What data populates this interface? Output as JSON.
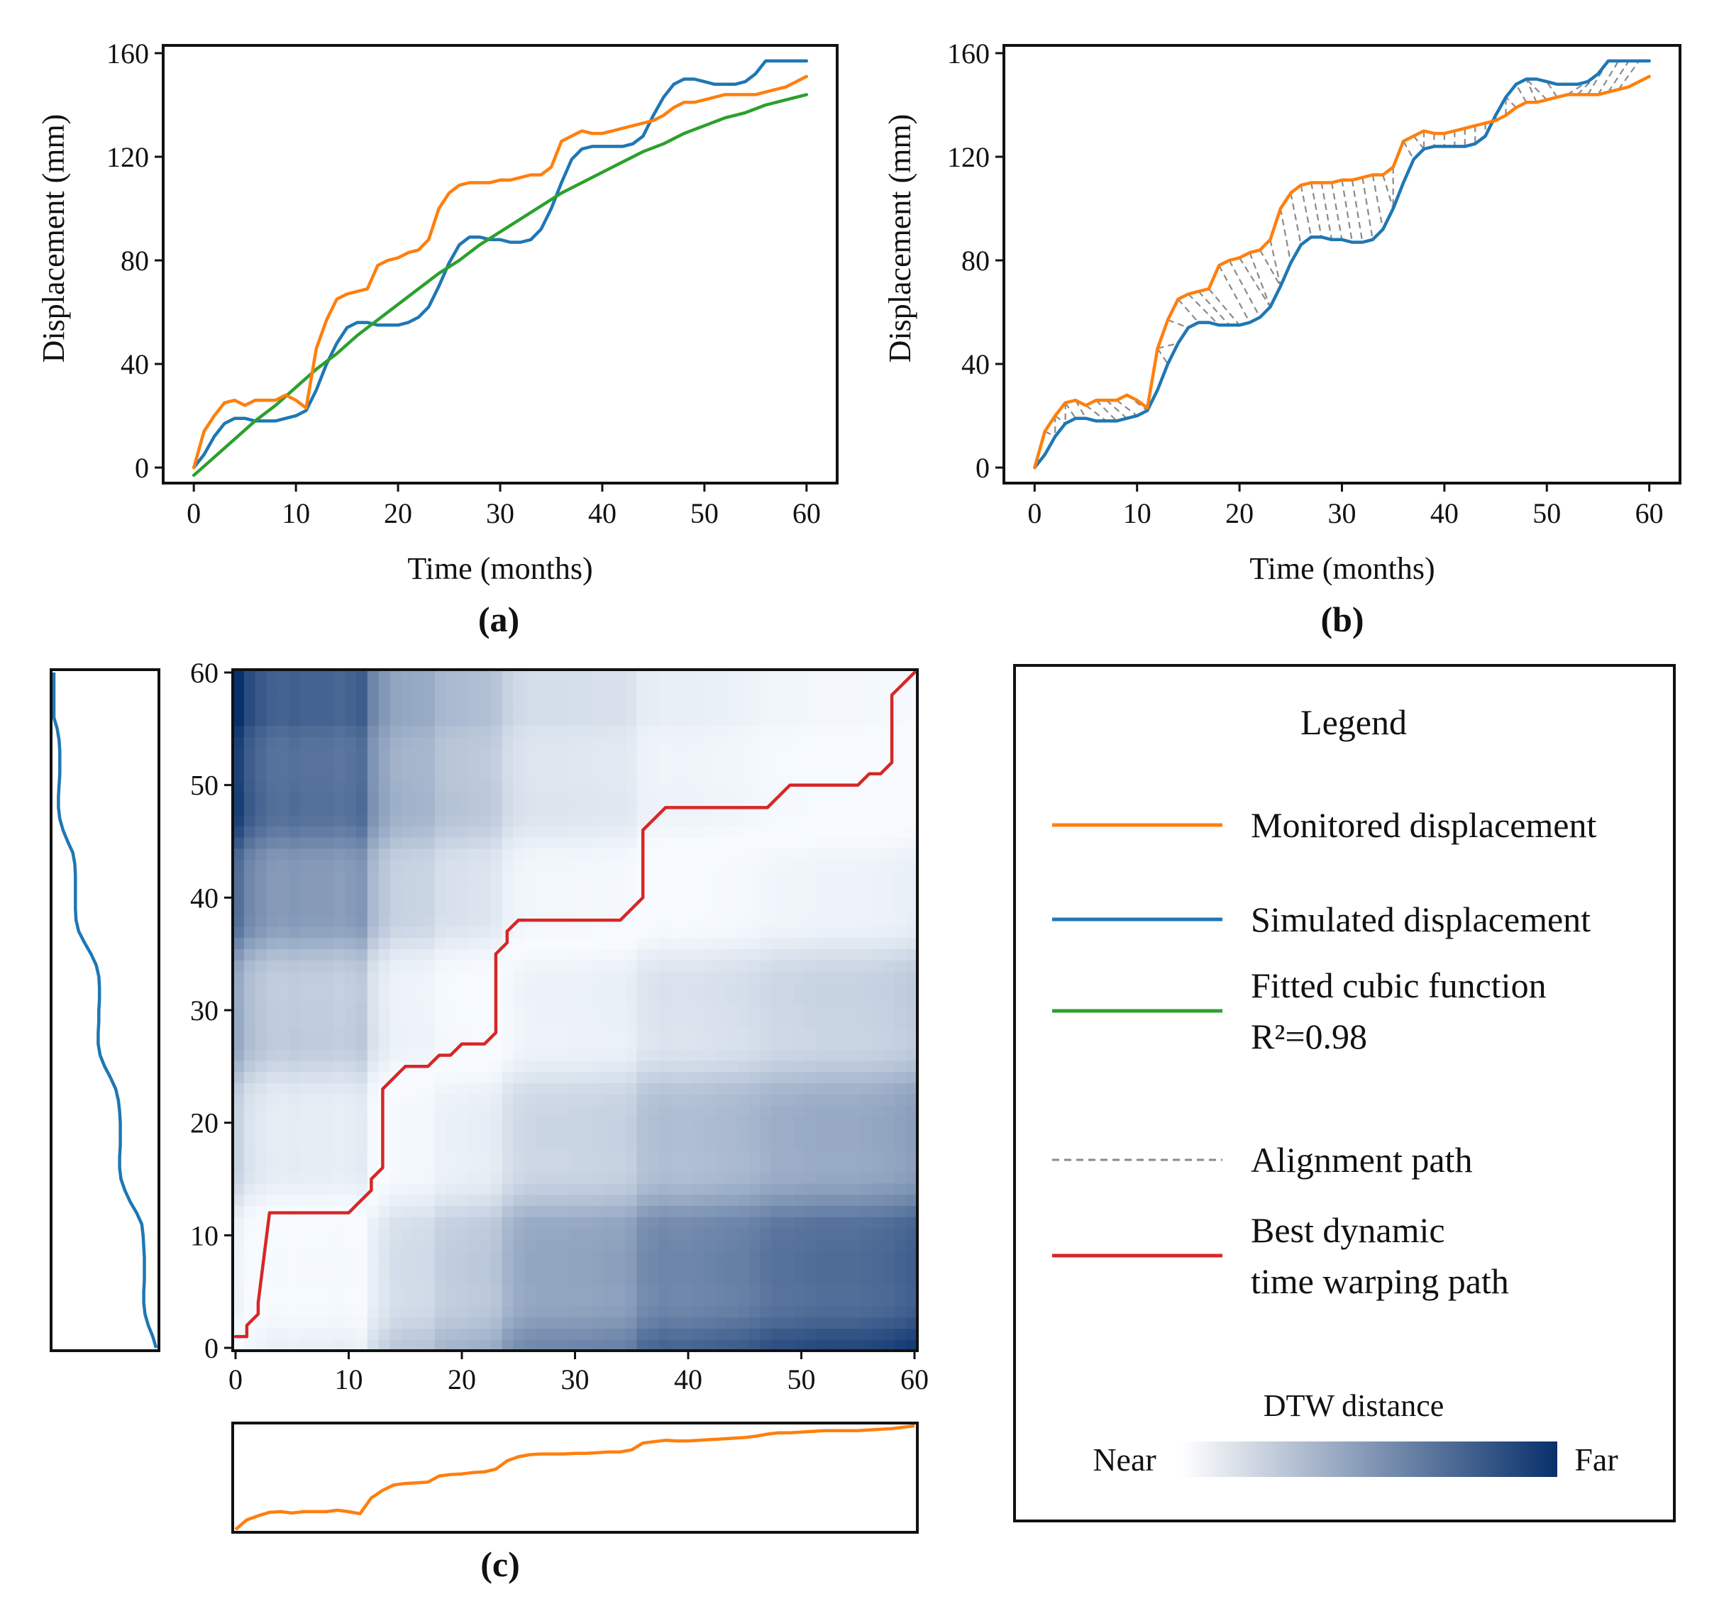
{
  "colors": {
    "monitored": "#ff7f0e",
    "simulated": "#1f77b4",
    "fitted": "#2ca02c",
    "alignment": "#8a8a8a",
    "dtw_path": "#d62728",
    "heat_near": "#f7fbff",
    "heat_far": "#08306b"
  },
  "panels": {
    "a": {
      "label": "(a)"
    },
    "b": {
      "label": "(b)"
    },
    "c": {
      "label": "(c)"
    }
  },
  "legend": {
    "title": "Legend",
    "items": [
      {
        "key": "monitored",
        "style": "solid",
        "lines": [
          "Monitored displacement"
        ]
      },
      {
        "key": "simulated",
        "style": "solid",
        "lines": [
          "Simulated displacement"
        ]
      },
      {
        "key": "fitted",
        "style": "solid",
        "lines": [
          "Fitted cubic function",
          "R²=0.98"
        ]
      },
      {
        "key": "alignment",
        "style": "dashed",
        "lines": [
          "Alignment path"
        ]
      },
      {
        "key": "dtw_path",
        "style": "solid",
        "lines": [
          "Best dynamic",
          "time warping path"
        ]
      }
    ],
    "colorbar": {
      "title": "DTW distance",
      "near": "Near",
      "far": "Far"
    }
  },
  "chart_data": [
    {
      "id": "a",
      "type": "line",
      "xlabel": "Time (months)",
      "ylabel": "Displacement (mm)",
      "xlim": [
        -3,
        63
      ],
      "ylim": [
        -6,
        163
      ],
      "xticks": [
        0,
        10,
        20,
        30,
        40,
        50,
        60
      ],
      "yticks": [
        0,
        40,
        80,
        120,
        160
      ],
      "series": [
        {
          "name": "Monitored displacement",
          "color_key": "monitored",
          "x": [
            0,
            1,
            2,
            3,
            4,
            5,
            6,
            7,
            8,
            9,
            10,
            11,
            12,
            13,
            14,
            15,
            16,
            17,
            18,
            19,
            20,
            21,
            22,
            23,
            24,
            25,
            26,
            27,
            28,
            29,
            30,
            31,
            32,
            33,
            34,
            35,
            36,
            37,
            38,
            39,
            40,
            41,
            42,
            43,
            44,
            45,
            46,
            47,
            48,
            49,
            50,
            51,
            52,
            53,
            54,
            55,
            56,
            57,
            58,
            59,
            60
          ],
          "y": [
            0,
            14,
            20,
            25,
            26,
            24,
            26,
            26,
            26,
            28,
            26,
            23,
            46,
            57,
            65,
            67,
            68,
            69,
            78,
            80,
            81,
            83,
            84,
            88,
            100,
            106,
            109,
            110,
            110,
            110,
            111,
            111,
            112,
            113,
            113,
            116,
            126,
            128,
            130,
            129,
            129,
            130,
            131,
            132,
            133,
            134,
            136,
            139,
            141,
            141,
            142,
            143,
            144,
            144,
            144,
            144,
            145,
            146,
            147,
            149,
            151
          ]
        },
        {
          "name": "Simulated displacement",
          "color_key": "simulated",
          "x": [
            0,
            1,
            2,
            3,
            4,
            5,
            6,
            7,
            8,
            9,
            10,
            11,
            12,
            13,
            14,
            15,
            16,
            17,
            18,
            19,
            20,
            21,
            22,
            23,
            24,
            25,
            26,
            27,
            28,
            29,
            30,
            31,
            32,
            33,
            34,
            35,
            36,
            37,
            38,
            39,
            40,
            41,
            42,
            43,
            44,
            45,
            46,
            47,
            48,
            49,
            50,
            51,
            52,
            53,
            54,
            55,
            56,
            57,
            58,
            59,
            60
          ],
          "y": [
            0,
            5,
            12,
            17,
            19,
            19,
            18,
            18,
            18,
            19,
            20,
            22,
            30,
            40,
            48,
            54,
            56,
            56,
            55,
            55,
            55,
            56,
            58,
            62,
            70,
            79,
            86,
            89,
            89,
            88,
            88,
            87,
            87,
            88,
            92,
            100,
            110,
            119,
            123,
            124,
            124,
            124,
            124,
            125,
            128,
            136,
            143,
            148,
            150,
            150,
            149,
            148,
            148,
            148,
            149,
            152,
            157,
            157,
            157,
            157,
            157
          ]
        },
        {
          "name": "Fitted cubic function",
          "color_key": "fitted",
          "x": [
            0,
            2,
            4,
            6,
            8,
            10,
            12,
            14,
            16,
            18,
            20,
            22,
            24,
            26,
            28,
            30,
            32,
            34,
            36,
            38,
            40,
            42,
            44,
            46,
            48,
            50,
            52,
            54,
            56,
            58,
            60
          ],
          "y": [
            -3,
            4,
            11,
            18,
            24,
            31,
            38,
            44,
            51,
            57,
            63,
            69,
            75,
            80,
            86,
            91,
            96,
            101,
            106,
            110,
            114,
            118,
            122,
            125,
            129,
            132,
            135,
            137,
            140,
            142,
            144
          ]
        }
      ]
    },
    {
      "id": "b",
      "type": "line",
      "xlabel": "Time (months)",
      "ylabel": "Displacement (mm)",
      "xlim": [
        -3,
        63
      ],
      "ylim": [
        -6,
        163
      ],
      "xticks": [
        0,
        10,
        20,
        30,
        40,
        50,
        60
      ],
      "yticks": [
        0,
        40,
        80,
        120,
        160
      ],
      "series": [
        {
          "name": "Monitored displacement",
          "color_key": "monitored",
          "x": [
            0,
            1,
            2,
            3,
            4,
            5,
            6,
            7,
            8,
            9,
            10,
            11,
            12,
            13,
            14,
            15,
            16,
            17,
            18,
            19,
            20,
            21,
            22,
            23,
            24,
            25,
            26,
            27,
            28,
            29,
            30,
            31,
            32,
            33,
            34,
            35,
            36,
            37,
            38,
            39,
            40,
            41,
            42,
            43,
            44,
            45,
            46,
            47,
            48,
            49,
            50,
            51,
            52,
            53,
            54,
            55,
            56,
            57,
            58,
            59,
            60
          ],
          "y": [
            0,
            14,
            20,
            25,
            26,
            24,
            26,
            26,
            26,
            28,
            26,
            23,
            46,
            57,
            65,
            67,
            68,
            69,
            78,
            80,
            81,
            83,
            84,
            88,
            100,
            106,
            109,
            110,
            110,
            110,
            111,
            111,
            112,
            113,
            113,
            116,
            126,
            128,
            130,
            129,
            129,
            130,
            131,
            132,
            133,
            134,
            136,
            139,
            141,
            141,
            142,
            143,
            144,
            144,
            144,
            144,
            145,
            146,
            147,
            149,
            151
          ]
        },
        {
          "name": "Simulated displacement",
          "color_key": "simulated",
          "x": [
            0,
            1,
            2,
            3,
            4,
            5,
            6,
            7,
            8,
            9,
            10,
            11,
            12,
            13,
            14,
            15,
            16,
            17,
            18,
            19,
            20,
            21,
            22,
            23,
            24,
            25,
            26,
            27,
            28,
            29,
            30,
            31,
            32,
            33,
            34,
            35,
            36,
            37,
            38,
            39,
            40,
            41,
            42,
            43,
            44,
            45,
            46,
            47,
            48,
            49,
            50,
            51,
            52,
            53,
            54,
            55,
            56,
            57,
            58,
            59,
            60
          ],
          "y": [
            0,
            5,
            12,
            17,
            19,
            19,
            18,
            18,
            18,
            19,
            20,
            22,
            30,
            40,
            48,
            54,
            56,
            56,
            55,
            55,
            55,
            56,
            58,
            62,
            70,
            79,
            86,
            89,
            89,
            88,
            88,
            87,
            87,
            88,
            92,
            100,
            110,
            119,
            123,
            124,
            124,
            124,
            124,
            125,
            128,
            136,
            143,
            148,
            150,
            150,
            149,
            148,
            148,
            148,
            149,
            152,
            157,
            157,
            157,
            157,
            157
          ]
        }
      ],
      "alignment_pairs": [
        [
          1,
          2
        ],
        [
          2,
          2
        ],
        [
          2,
          3
        ],
        [
          3,
          3
        ],
        [
          3,
          4
        ],
        [
          4,
          5
        ],
        [
          5,
          7
        ],
        [
          6,
          8
        ],
        [
          7,
          9
        ],
        [
          8,
          10
        ],
        [
          9,
          11
        ],
        [
          10,
          11
        ],
        [
          11,
          12
        ],
        [
          12,
          13
        ],
        [
          12,
          14
        ],
        [
          13,
          15
        ],
        [
          14,
          16
        ],
        [
          15,
          18
        ],
        [
          16,
          19
        ],
        [
          17,
          20
        ],
        [
          18,
          21
        ],
        [
          19,
          22
        ],
        [
          20,
          23
        ],
        [
          21,
          23
        ],
        [
          22,
          24
        ],
        [
          23,
          24
        ],
        [
          24,
          25
        ],
        [
          25,
          26
        ],
        [
          26,
          27
        ],
        [
          27,
          28
        ],
        [
          28,
          29
        ],
        [
          29,
          30
        ],
        [
          30,
          31
        ],
        [
          31,
          32
        ],
        [
          32,
          33
        ],
        [
          33,
          34
        ],
        [
          34,
          35
        ],
        [
          35,
          35
        ],
        [
          36,
          37
        ],
        [
          37,
          38
        ],
        [
          38,
          38
        ],
        [
          39,
          39
        ],
        [
          40,
          40
        ],
        [
          41,
          41
        ],
        [
          42,
          42
        ],
        [
          43,
          43
        ],
        [
          44,
          44
        ],
        [
          45,
          45
        ],
        [
          46,
          46
        ],
        [
          47,
          46
        ],
        [
          48,
          47
        ],
        [
          49,
          48
        ],
        [
          50,
          48
        ],
        [
          51,
          50
        ],
        [
          52,
          54
        ],
        [
          53,
          55
        ],
        [
          54,
          56
        ],
        [
          55,
          57
        ],
        [
          56,
          58
        ],
        [
          57,
          59
        ]
      ]
    },
    {
      "id": "c",
      "type": "heatmap",
      "xlim": [
        0,
        60
      ],
      "ylim": [
        0,
        60
      ],
      "xticks": [
        0,
        10,
        20,
        30,
        40,
        50,
        60
      ],
      "yticks": [
        0,
        10,
        20,
        30,
        40,
        50,
        60
      ],
      "path_x": [
        0,
        1,
        1,
        2,
        2,
        3,
        10,
        11,
        12,
        12,
        13,
        13,
        14,
        15,
        17,
        18,
        19,
        20,
        22,
        23,
        23,
        24,
        24,
        25,
        34,
        35,
        36,
        36,
        37,
        37,
        38,
        47,
        48,
        48,
        49,
        50,
        55,
        56,
        57,
        58,
        58,
        59,
        60
      ],
      "path_y": [
        1,
        1,
        2,
        3,
        4,
        12,
        12,
        13,
        14,
        15,
        16,
        23,
        24,
        25,
        25,
        26,
        26,
        27,
        27,
        28,
        35,
        36,
        37,
        38,
        38,
        39,
        40,
        46,
        47,
        47,
        48,
        48,
        49,
        49,
        50,
        50,
        50,
        51,
        51,
        52,
        58,
        59,
        60
      ],
      "top_series": {
        "name": "Monitored displacement",
        "color_key": "monitored"
      },
      "left_series": {
        "name": "Simulated displacement",
        "color_key": "simulated"
      }
    }
  ]
}
